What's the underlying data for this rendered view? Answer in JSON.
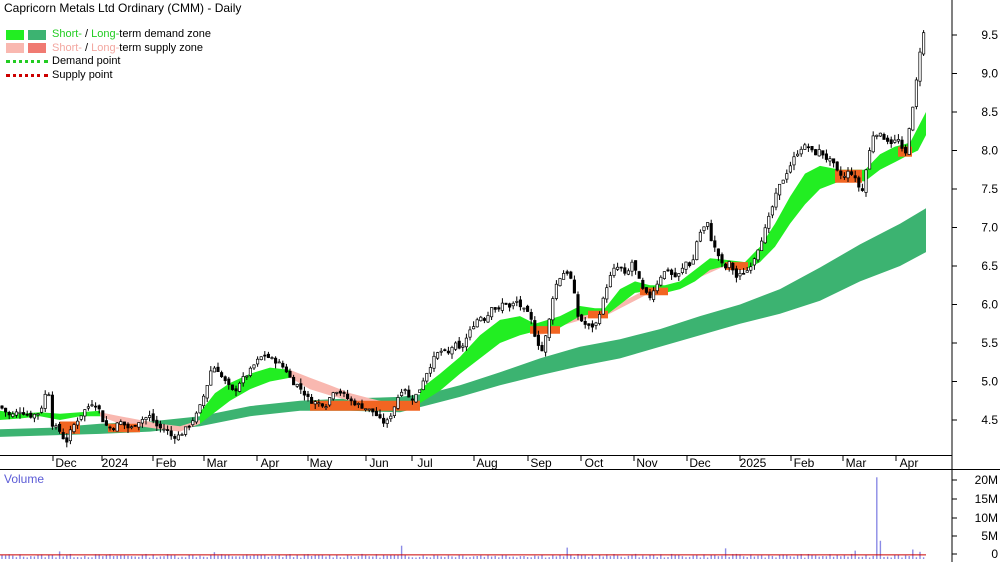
{
  "title": "Capricorn Metals Ltd Ordinary (CMM) - Daily",
  "legend": {
    "demand_zone": {
      "short": "Short-",
      "sep": " / ",
      "long": "Long-",
      "rest": "term demand zone"
    },
    "supply_zone": {
      "short": "Short-",
      "sep": " / ",
      "long": "Long-",
      "rest": "term supply zone"
    },
    "demand_point": "Demand point",
    "supply_point": "Supply point"
  },
  "colors": {
    "short_demand": "#22ee22",
    "long_demand": "#3cb371",
    "short_supply": "#f9b8b0",
    "long_supply": "#f07a72",
    "mixed_zone": "#f26522",
    "demand_point": "#22cc22",
    "supply_point": "#cc0000",
    "volume": "#8b8be6",
    "volume_avg": "#cc0000"
  },
  "volume_label": "Volume",
  "chart_data": {
    "type": "candlestick",
    "symbol": "CMM",
    "interval": "Daily",
    "x_ticks": [
      "Dec",
      "2024",
      "Feb",
      "Mar",
      "Apr",
      "May",
      "Jun",
      "Jul",
      "Aug",
      "Sep",
      "Oct",
      "Nov",
      "Dec",
      "2025",
      "Feb",
      "Mar",
      "Apr"
    ],
    "y_ticks": [
      "9.5",
      "9.0",
      "8.5",
      "8.0",
      "7.5",
      "7.0",
      "6.5",
      "6.0",
      "5.5",
      "5.0",
      "4.5"
    ],
    "ylim": [
      4.0,
      9.85
    ],
    "volume_ticks": [
      "20M",
      "15M",
      "10M",
      "5M",
      "0"
    ],
    "volume_ylim": [
      0,
      23000000
    ],
    "close_path": [
      [
        0,
        4.68
      ],
      [
        10,
        4.55
      ],
      [
        20,
        4.62
      ],
      [
        30,
        4.55
      ],
      [
        40,
        4.6
      ],
      [
        48,
        4.95
      ],
      [
        52,
        4.45
      ],
      [
        60,
        4.35
      ],
      [
        66,
        4.2
      ],
      [
        72,
        4.4
      ],
      [
        84,
        4.62
      ],
      [
        92,
        4.72
      ],
      [
        98,
        4.68
      ],
      [
        104,
        4.45
      ],
      [
        112,
        4.38
      ],
      [
        120,
        4.48
      ],
      [
        130,
        4.38
      ],
      [
        140,
        4.5
      ],
      [
        150,
        4.55
      ],
      [
        158,
        4.4
      ],
      [
        166,
        4.38
      ],
      [
        172,
        4.28
      ],
      [
        180,
        4.3
      ],
      [
        190,
        4.45
      ],
      [
        198,
        4.6
      ],
      [
        206,
        4.9
      ],
      [
        212,
        5.2
      ],
      [
        218,
        5.15
      ],
      [
        222,
        5.05
      ],
      [
        228,
        4.95
      ],
      [
        234,
        4.85
      ],
      [
        240,
        5.0
      ],
      [
        248,
        5.1
      ],
      [
        256,
        5.25
      ],
      [
        264,
        5.35
      ],
      [
        270,
        5.3
      ],
      [
        278,
        5.25
      ],
      [
        286,
        5.15
      ],
      [
        292,
        5.0
      ],
      [
        298,
        4.95
      ],
      [
        304,
        4.85
      ],
      [
        310,
        4.75
      ],
      [
        318,
        4.72
      ],
      [
        326,
        4.7
      ],
      [
        334,
        4.9
      ],
      [
        342,
        4.85
      ],
      [
        350,
        4.75
      ],
      [
        358,
        4.7
      ],
      [
        366,
        4.65
      ],
      [
        374,
        4.6
      ],
      [
        380,
        4.5
      ],
      [
        386,
        4.45
      ],
      [
        392,
        4.6
      ],
      [
        398,
        4.8
      ],
      [
        404,
        4.95
      ],
      [
        410,
        4.75
      ],
      [
        418,
        4.85
      ],
      [
        424,
        5.05
      ],
      [
        430,
        5.2
      ],
      [
        436,
        5.35
      ],
      [
        442,
        5.4
      ],
      [
        448,
        5.35
      ],
      [
        454,
        5.5
      ],
      [
        460,
        5.4
      ],
      [
        468,
        5.6
      ],
      [
        474,
        5.75
      ],
      [
        480,
        5.85
      ],
      [
        486,
        5.8
      ],
      [
        492,
        6.0
      ],
      [
        498,
        5.9
      ],
      [
        504,
        6.05
      ],
      [
        510,
        5.95
      ],
      [
        516,
        6.05
      ],
      [
        522,
        5.95
      ],
      [
        530,
        5.85
      ],
      [
        536,
        5.55
      ],
      [
        542,
        5.4
      ],
      [
        548,
        5.7
      ],
      [
        554,
        6.2
      ],
      [
        560,
        6.35
      ],
      [
        566,
        6.45
      ],
      [
        572,
        6.3
      ],
      [
        578,
        5.85
      ],
      [
        584,
        5.75
      ],
      [
        590,
        5.7
      ],
      [
        596,
        5.75
      ],
      [
        602,
        6.0
      ],
      [
        608,
        6.3
      ],
      [
        614,
        6.45
      ],
      [
        620,
        6.5
      ],
      [
        626,
        6.35
      ],
      [
        632,
        6.55
      ],
      [
        638,
        6.35
      ],
      [
        644,
        6.15
      ],
      [
        650,
        6.1
      ],
      [
        656,
        6.25
      ],
      [
        662,
        6.4
      ],
      [
        668,
        6.45
      ],
      [
        674,
        6.35
      ],
      [
        680,
        6.4
      ],
      [
        686,
        6.55
      ],
      [
        692,
        6.5
      ],
      [
        698,
        6.9
      ],
      [
        704,
        7.0
      ],
      [
        708,
        7.05
      ],
      [
        712,
        6.8
      ],
      [
        718,
        6.65
      ],
      [
        724,
        6.45
      ],
      [
        730,
        6.55
      ],
      [
        736,
        6.35
      ],
      [
        742,
        6.4
      ],
      [
        748,
        6.45
      ],
      [
        754,
        6.6
      ],
      [
        760,
        6.8
      ],
      [
        766,
        7.0
      ],
      [
        772,
        7.25
      ],
      [
        778,
        7.5
      ],
      [
        784,
        7.65
      ],
      [
        790,
        7.8
      ],
      [
        796,
        7.95
      ],
      [
        802,
        8.05
      ],
      [
        808,
        8.05
      ],
      [
        814,
        7.95
      ],
      [
        820,
        8.0
      ],
      [
        826,
        7.9
      ],
      [
        832,
        7.85
      ],
      [
        838,
        7.7
      ],
      [
        844,
        7.65
      ],
      [
        850,
        7.75
      ],
      [
        856,
        7.6
      ],
      [
        862,
        7.45
      ],
      [
        868,
        7.9
      ],
      [
        874,
        8.25
      ],
      [
        880,
        8.2
      ],
      [
        886,
        8.15
      ],
      [
        892,
        8.1
      ],
      [
        898,
        8.15
      ],
      [
        902,
        8.0
      ],
      [
        906,
        7.95
      ],
      [
        910,
        8.4
      ],
      [
        914,
        8.6
      ],
      [
        918,
        9.1
      ],
      [
        922,
        9.5
      ],
      [
        926,
        9.55
      ]
    ],
    "short_demand_band": [
      [
        0,
        4.62,
        4.5
      ],
      [
        20,
        4.58,
        4.52
      ],
      [
        40,
        4.6,
        4.55
      ],
      [
        60,
        4.58,
        4.5
      ],
      [
        80,
        4.6,
        4.55
      ],
      [
        100,
        4.62,
        4.55
      ],
      [
        200,
        4.6,
        4.45
      ],
      [
        215,
        4.85,
        4.6
      ],
      [
        230,
        4.98,
        4.75
      ],
      [
        250,
        5.1,
        4.9
      ],
      [
        270,
        5.18,
        5.0
      ],
      [
        290,
        5.15,
        5.05
      ],
      [
        420,
        4.9,
        4.72
      ],
      [
        440,
        5.1,
        4.88
      ],
      [
        460,
        5.32,
        5.1
      ],
      [
        480,
        5.6,
        5.3
      ],
      [
        500,
        5.8,
        5.5
      ],
      [
        520,
        5.85,
        5.6
      ],
      [
        535,
        5.75,
        5.65
      ],
      [
        560,
        5.85,
        5.7
      ],
      [
        580,
        5.98,
        5.85
      ],
      [
        595,
        5.95,
        5.88
      ],
      [
        605,
        5.95,
        5.85
      ],
      [
        620,
        6.2,
        6.0
      ],
      [
        635,
        6.3,
        6.15
      ],
      [
        650,
        6.25,
        6.18
      ],
      [
        665,
        6.25,
        6.15
      ],
      [
        680,
        6.3,
        6.2
      ],
      [
        695,
        6.45,
        6.3
      ],
      [
        710,
        6.6,
        6.45
      ],
      [
        725,
        6.58,
        6.5
      ],
      [
        745,
        6.55,
        6.45
      ],
      [
        760,
        6.75,
        6.55
      ],
      [
        775,
        7.05,
        6.75
      ],
      [
        790,
        7.4,
        7.05
      ],
      [
        805,
        7.7,
        7.3
      ],
      [
        820,
        7.8,
        7.5
      ],
      [
        840,
        7.75,
        7.6
      ],
      [
        865,
        7.75,
        7.6
      ],
      [
        880,
        7.95,
        7.75
      ],
      [
        895,
        8.05,
        7.85
      ],
      [
        910,
        8.1,
        7.95
      ],
      [
        918,
        8.3,
        8.0
      ],
      [
        926,
        8.5,
        8.2
      ]
    ],
    "short_supply_band": [
      [
        100,
        4.6,
        4.55
      ],
      [
        120,
        4.55,
        4.45
      ],
      [
        140,
        4.5,
        4.42
      ],
      [
        160,
        4.45,
        4.38
      ],
      [
        180,
        4.42,
        4.35
      ],
      [
        200,
        4.5,
        4.45
      ],
      [
        290,
        5.15,
        5.05
      ],
      [
        310,
        5.05,
        4.9
      ],
      [
        330,
        4.95,
        4.82
      ],
      [
        350,
        4.85,
        4.75
      ],
      [
        370,
        4.78,
        4.7
      ],
      [
        390,
        4.72,
        4.65
      ],
      [
        410,
        4.72,
        4.65
      ],
      [
        420,
        4.75,
        4.7
      ],
      [
        535,
        5.72,
        5.6
      ],
      [
        545,
        5.72,
        5.62
      ],
      [
        560,
        5.8,
        5.72
      ],
      [
        595,
        5.92,
        5.85
      ],
      [
        605,
        5.92,
        5.85
      ],
      [
        650,
        6.22,
        6.15
      ],
      [
        665,
        6.2,
        6.15
      ],
      [
        725,
        6.55,
        6.5
      ],
      [
        745,
        6.5,
        6.45
      ],
      [
        840,
        7.72,
        7.6
      ],
      [
        865,
        7.7,
        7.6
      ]
    ],
    "long_demand_band": [
      [
        0,
        4.38,
        4.28
      ],
      [
        50,
        4.4,
        4.3
      ],
      [
        100,
        4.45,
        4.32
      ],
      [
        150,
        4.48,
        4.35
      ],
      [
        200,
        4.55,
        4.42
      ],
      [
        250,
        4.68,
        4.55
      ],
      [
        300,
        4.75,
        4.62
      ],
      [
        350,
        4.78,
        4.62
      ],
      [
        400,
        4.8,
        4.6
      ],
      [
        430,
        4.85,
        4.7
      ],
      [
        460,
        4.95,
        4.8
      ],
      [
        500,
        5.12,
        4.95
      ],
      [
        540,
        5.3,
        5.08
      ],
      [
        580,
        5.45,
        5.2
      ],
      [
        620,
        5.55,
        5.3
      ],
      [
        660,
        5.68,
        5.45
      ],
      [
        700,
        5.85,
        5.6
      ],
      [
        740,
        6.0,
        5.75
      ],
      [
        780,
        6.2,
        5.88
      ],
      [
        820,
        6.48,
        6.05
      ],
      [
        860,
        6.78,
        6.3
      ],
      [
        900,
        7.05,
        6.5
      ],
      [
        926,
        7.25,
        6.68
      ]
    ],
    "mixed_zones": [
      [
        [
          60,
          4.48
        ],
        [
          80,
          4.48
        ],
        [
          80,
          4.32
        ],
        [
          60,
          4.32
        ]
      ],
      [
        [
          108,
          4.45
        ],
        [
          140,
          4.45
        ],
        [
          140,
          4.34
        ],
        [
          108,
          4.34
        ]
      ],
      [
        [
          310,
          4.75
        ],
        [
          420,
          4.75
        ],
        [
          420,
          4.62
        ],
        [
          310,
          4.62
        ]
      ],
      [
        [
          530,
          5.72
        ],
        [
          560,
          5.72
        ],
        [
          560,
          5.62
        ],
        [
          530,
          5.62
        ]
      ],
      [
        [
          588,
          5.92
        ],
        [
          608,
          5.92
        ],
        [
          608,
          5.82
        ],
        [
          588,
          5.82
        ]
      ],
      [
        [
          640,
          6.22
        ],
        [
          668,
          6.22
        ],
        [
          668,
          6.12
        ],
        [
          640,
          6.12
        ]
      ],
      [
        [
          725,
          6.55
        ],
        [
          748,
          6.55
        ],
        [
          748,
          6.45
        ],
        [
          725,
          6.45
        ]
      ],
      [
        [
          835,
          7.75
        ],
        [
          862,
          7.75
        ],
        [
          862,
          7.58
        ],
        [
          835,
          7.58
        ]
      ],
      [
        [
          898,
          8.05
        ],
        [
          912,
          8.05
        ],
        [
          912,
          7.92
        ],
        [
          898,
          7.92
        ]
      ]
    ],
    "volume_spikes": [
      [
        878,
        21500000
      ],
      [
        882,
        4800000
      ],
      [
        403,
        3500000
      ],
      [
        567,
        3000000
      ],
      [
        726,
        2800000
      ],
      [
        58,
        2000000
      ],
      [
        215,
        1800000
      ],
      [
        857,
        2200000
      ],
      [
        913,
        2500000
      ],
      [
        920,
        1900000
      ]
    ],
    "volume_baseline": 900000,
    "volume_avg": 1100000
  }
}
